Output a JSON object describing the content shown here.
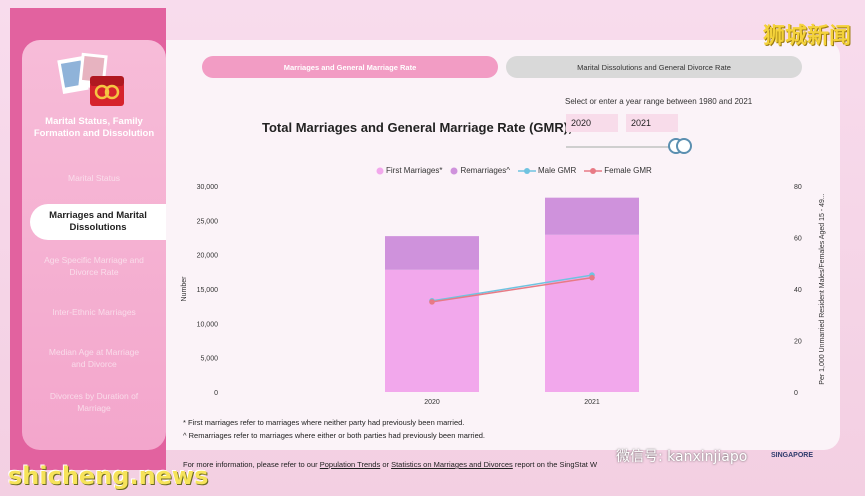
{
  "sidebar": {
    "title": "Marital Status, Family Formation and Dissolution",
    "items": [
      {
        "label": "Marital Status"
      },
      {
        "label": "Marriages and Marital Dissolutions",
        "active": true
      },
      {
        "label": "Age Specific Marriage and Divorce Rate"
      },
      {
        "label": "Inter-Ethnic Marriages"
      },
      {
        "label": "Median Age at Marriage and Divorce"
      },
      {
        "label": "Divorces by Duration of Marriage"
      }
    ]
  },
  "tabs": [
    {
      "label": "Marriages and General Marriage Rate",
      "active": true
    },
    {
      "label": "Marital Dissolutions and General Divorce Rate",
      "active": false
    }
  ],
  "range": {
    "hint": "Select or enter a year range between 1980 and 2021",
    "start": "2020",
    "end": "2021"
  },
  "chart_title": "Total Marriages and General Marriage Rate (GMR),",
  "chart_data": {
    "type": "bar",
    "categories": [
      "2020",
      "2021"
    ],
    "series": [
      {
        "name": "First Marriages*",
        "kind": "bar-stacked",
        "color": "#f2a8ec",
        "values": [
          17800,
          22900
        ]
      },
      {
        "name": "Remarriages^",
        "kind": "bar-stacked",
        "color": "#cf92dc",
        "values": [
          4900,
          5400
        ]
      },
      {
        "name": "Male GMR",
        "kind": "line",
        "axis": "right",
        "color": "#6fc3e0",
        "values": [
          35.4,
          45.4
        ]
      },
      {
        "name": "Female GMR",
        "kind": "line",
        "axis": "right",
        "color": "#e87a85",
        "values": [
          35.0,
          44.4
        ]
      }
    ],
    "ylabel": "Number",
    "ylabel_right": "Per 1,000 Unmarried Resident Males/Females Aged 15 - 49...",
    "ylim": [
      0,
      30000
    ],
    "ylim_right": [
      0,
      80
    ],
    "yticks": [
      "0",
      "5,000",
      "10,000",
      "15,000",
      "20,000",
      "25,000",
      "30,000"
    ],
    "yticks_right": [
      "0",
      "20",
      "40",
      "60",
      "80"
    ],
    "grid": false,
    "legend": "top"
  },
  "footnotes": [
    "* First marriages refer to marriages where neither party had previously been married.",
    "^ Remarriages refer to marriages where either or both parties had previously been married."
  ],
  "footer": {
    "prefix": "For more information, please refer to our",
    "link1": "Population Trends",
    "or": "or",
    "link2": "Statistics on Marriages and Divorces",
    "suffix": "report on the SingStat W"
  },
  "watermarks": {
    "top": "狮城新闻",
    "bottom": "shicheng.news",
    "wechat": "微信号: kanxinjiapo",
    "logo": "SINGAPORE"
  }
}
